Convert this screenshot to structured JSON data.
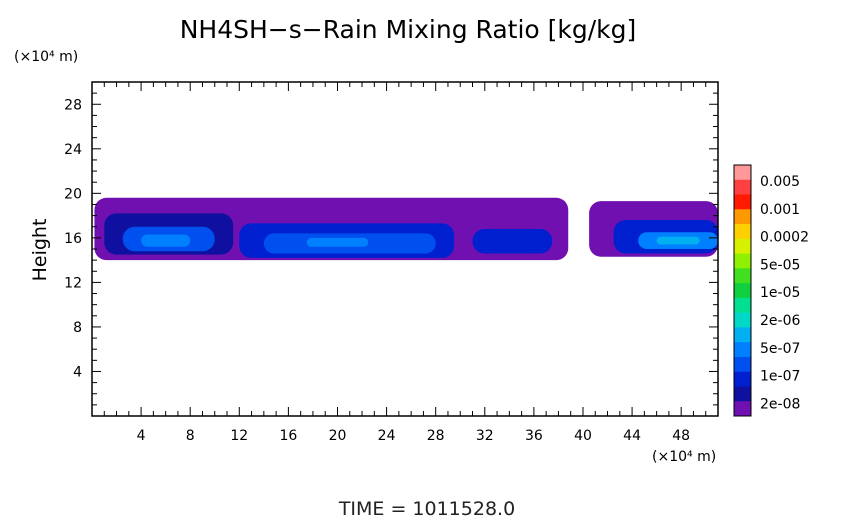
{
  "chart_data": {
    "type": "heatmap",
    "title": "NH4SH−s−Rain Mixing Ratio [kg/kg]",
    "ylabel": "Height",
    "yunit": "(×10⁴ m)",
    "xunit": "(×10⁴ m)",
    "xlim": [
      0,
      51
    ],
    "ylim": [
      0,
      30
    ],
    "xticks": [
      4,
      8,
      12,
      16,
      20,
      24,
      28,
      32,
      36,
      40,
      44,
      48
    ],
    "yticks": [
      4,
      8,
      12,
      16,
      20,
      24,
      28
    ],
    "colorbar": {
      "labels": [
        "0.005",
        "0.001",
        "0.0002",
        "5e-05",
        "1e-05",
        "2e-06",
        "5e-07",
        "1e-07",
        "2e-08"
      ],
      "colors": [
        "#ff9999",
        "#ff4040",
        "#ff1a00",
        "#ff9900",
        "#ffd000",
        "#d7f000",
        "#8ff000",
        "#40e020",
        "#10d040",
        "#00e090",
        "#00d8c8",
        "#00b0f0",
        "#0080ff",
        "#0050f0",
        "#0020d0",
        "#1010a0",
        "#7010b0"
      ]
    },
    "regions": [
      {
        "level": 0,
        "x0": 0.2,
        "x1": 38.8,
        "y0": 14.0,
        "y1": 19.6
      },
      {
        "level": 1,
        "x0": 1.0,
        "x1": 11.5,
        "y0": 14.5,
        "y1": 18.2
      },
      {
        "level": 2,
        "x0": 12.0,
        "x1": 29.5,
        "y0": 14.2,
        "y1": 17.3
      },
      {
        "level": 2,
        "x0": 31.0,
        "x1": 37.5,
        "y0": 14.6,
        "y1": 16.8
      },
      {
        "level": 3,
        "x0": 2.5,
        "x1": 10.0,
        "y0": 14.8,
        "y1": 17.0
      },
      {
        "level": 3,
        "x0": 14.0,
        "x1": 28.0,
        "y0": 14.6,
        "y1": 16.4
      },
      {
        "level": 4,
        "x0": 4.0,
        "x1": 8.0,
        "y0": 15.2,
        "y1": 16.3
      },
      {
        "level": 4,
        "x0": 17.5,
        "x1": 22.5,
        "y0": 15.2,
        "y1": 16.0
      },
      {
        "level": 0,
        "x0": 40.5,
        "x1": 51.0,
        "y0": 14.3,
        "y1": 19.3
      },
      {
        "level": 2,
        "x0": 42.5,
        "x1": 51.0,
        "y0": 14.6,
        "y1": 17.6
      },
      {
        "level": 4,
        "x0": 44.5,
        "x1": 51.0,
        "y0": 15.0,
        "y1": 16.5
      },
      {
        "level": 5,
        "x0": 46.0,
        "x1": 49.5,
        "y0": 15.4,
        "y1": 16.1
      }
    ]
  },
  "footer": {
    "time_label": "TIME = 1011528.0"
  }
}
